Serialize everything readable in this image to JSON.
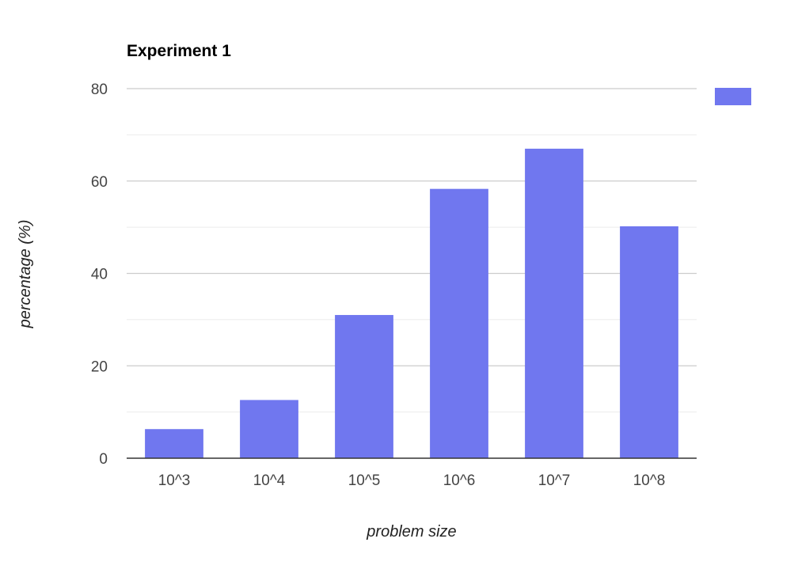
{
  "colors": {
    "bar": "#7077ef",
    "major_grid": "#cccccc",
    "minor_grid": "#ebebeb",
    "baseline": "#333333"
  },
  "chart_data": {
    "type": "bar",
    "title": "Experiment 1",
    "xlabel": "problem size",
    "ylabel": "percentage (%)",
    "categories": [
      "10^3",
      "10^4",
      "10^5",
      "10^6",
      "10^7",
      "10^8"
    ],
    "series": [
      {
        "values": [
          6.3,
          12.6,
          31.0,
          58.3,
          67.0,
          50.2
        ]
      }
    ],
    "ylim": [
      0,
      80
    ],
    "yticks": [
      0,
      20,
      40,
      60,
      80
    ],
    "grid": true,
    "legend": "top-right"
  }
}
